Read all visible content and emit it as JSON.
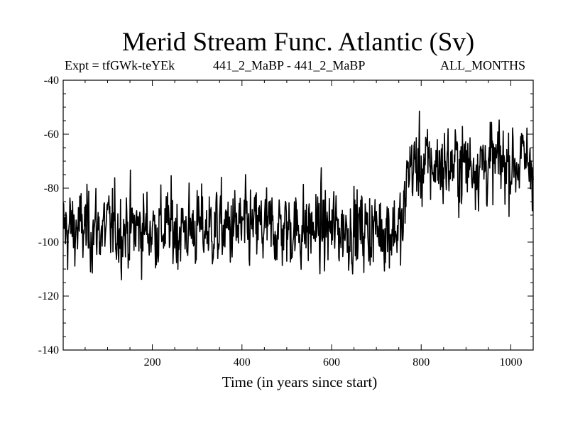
{
  "chart_data": {
    "type": "line",
    "title": "Merid Stream Func. Atlantic (Sv)",
    "subtitle_left": "Expt = tfGWk-teYEk",
    "subtitle_center": "441_2_MaBP - 441_2_MaBP",
    "subtitle_right": "ALL_MONTHS",
    "xlabel": "Time (in years since start)",
    "ylabel": "",
    "xlim": [
      1,
      1050
    ],
    "ylim": [
      -140,
      -40
    ],
    "xticks": [
      200,
      400,
      600,
      800,
      1000
    ],
    "yticks": [
      -140,
      -120,
      -100,
      -80,
      -60,
      -40
    ],
    "grid": false,
    "series": [
      {
        "x": [
          1,
          760,
          770,
          1050
        ],
        "y": [
          -95,
          -95,
          -72,
          -70
        ],
        "noise": 8,
        "note_values": "annual-mean series; ~ -95 Sv before year ~765, then a step to ~ -72 Sv with slow rise to ~ -68 Sv"
      }
    ]
  }
}
